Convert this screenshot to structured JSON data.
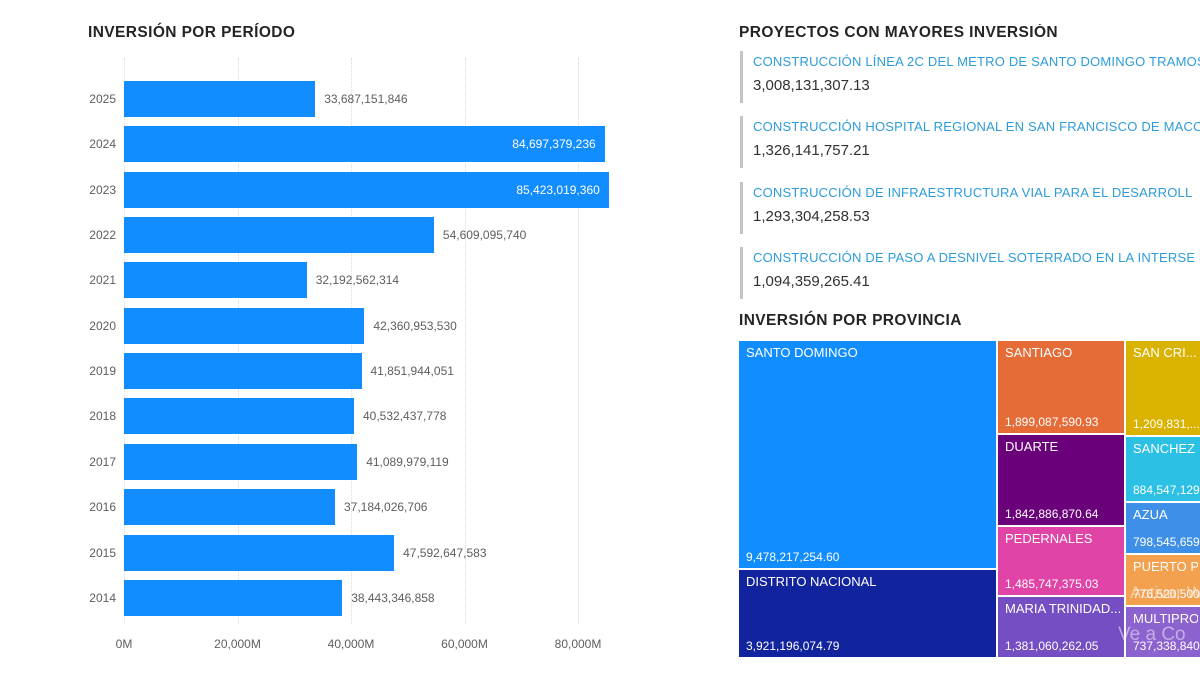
{
  "colors": {
    "bar_blue": "#118DFF",
    "axis_text": "#605E5C",
    "title_text": "#252423",
    "project_name_blue": "#2D9CDB",
    "project_value_text": "#323130",
    "project_accent_bar": "#C6C4C2"
  },
  "chart_data": [
    {
      "type": "bar",
      "orientation": "horizontal",
      "title": "INVERSIÓN POR PERÍODO",
      "categories": [
        "2025",
        "2024",
        "2023",
        "2022",
        "2021",
        "2020",
        "2019",
        "2018",
        "2017",
        "2016",
        "2015",
        "2014"
      ],
      "values": [
        33687151846,
        84697379236,
        85423019360,
        54609095740,
        32192562314,
        42360953530,
        41851944051,
        40532437778,
        41089979119,
        37184026706,
        47592647583,
        38443346858
      ],
      "value_labels": [
        "33,687,151,846",
        "84,697,379,236",
        "85,423,019,360",
        "54,609,095,740",
        "32,192,562,314",
        "42,360,953,530",
        "41,851,944,051",
        "40,532,437,778",
        "41,089,979,119",
        "37,184,026,706",
        "47,592,647,583",
        "38,443,346,858"
      ],
      "x_ticks": [
        "0M",
        "20,000M",
        "40,000M",
        "60,000M",
        "80,000M"
      ],
      "x_tick_values_millions": [
        0,
        20000,
        40000,
        60000,
        80000
      ],
      "xlim": [
        0,
        85500000000
      ],
      "bar_color": "#118DFF",
      "grid": "vertical-dotted",
      "legend": "none"
    },
    {
      "type": "table",
      "title": "PROYECTOS CON MAYORES INVERSIÓN",
      "items": [
        {
          "name": "CONSTRUCCIÓN LÍNEA 2C DEL METRO DE SANTO DOMINGO TRAMOS",
          "value": "3,008,131,307.13"
        },
        {
          "name": "CONSTRUCCIÓN HOSPITAL REGIONAL EN SAN FRANCISCO DE MACO",
          "value": "1,326,141,757.21"
        },
        {
          "name": "CONSTRUCCIÓN DE INFRAESTRUCTURA VIAL PARA EL DESARROLL",
          "value": "1,293,304,258.53"
        },
        {
          "name": "CONSTRUCCIÓN DE PASO A DESNIVEL SOTERRADO EN LA INTERSE",
          "value": "1,094,359,265.41"
        }
      ]
    },
    {
      "type": "treemap",
      "title": "INVERSIÓN POR PROVINCIA",
      "blocks": [
        {
          "name": "SANTO DOMINGO",
          "value": "9,478,217,254.60",
          "color": "#118DFF"
        },
        {
          "name": "DISTRITO NACIONAL",
          "value": "3,921,196,074.79",
          "color": "#12239E"
        },
        {
          "name": "SANTIAGO",
          "value": "1,899,087,590.93",
          "color": "#E66C37"
        },
        {
          "name": "DUARTE",
          "value": "1,842,886,870.64",
          "color": "#6B007B"
        },
        {
          "name": "PEDERNALES",
          "value": "1,485,747,375.03",
          "color": "#E044A7"
        },
        {
          "name": "MARIA TRINIDAD...",
          "value": "1,381,060,262.05",
          "color": "#744EC2"
        },
        {
          "name": "SAN CRI...",
          "value": "1,209,831,...",
          "color": "#D9B300"
        },
        {
          "name": "SANCHEZ ...",
          "value": "884,547,129.",
          "color": "#2BC0E4"
        },
        {
          "name": "AZUA",
          "value": "798,545,659.",
          "color": "#3E8FE8"
        },
        {
          "name": "PUERTO PL...",
          "value": "776,520,500.",
          "color": "#F3A04F"
        },
        {
          "name": "MULTIPRO...",
          "value": "737,338,840.",
          "color": "#8C62CE"
        }
      ]
    }
  ],
  "watermark": {
    "line1": "Activar W",
    "line2": "Ve a Co"
  }
}
